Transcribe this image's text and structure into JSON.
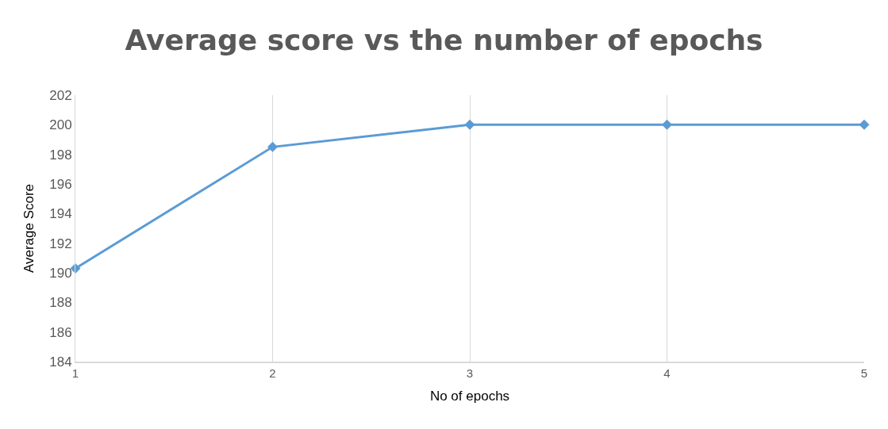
{
  "chart_data": {
    "type": "line",
    "title": "Average score vs the number of epochs",
    "xlabel": "No of epochs",
    "ylabel": "Average Score",
    "x": [
      1,
      2,
      3,
      4,
      5
    ],
    "series": [
      {
        "color": "#5b9bd5",
        "values": [
          190.3,
          198.5,
          200,
          200,
          200
        ]
      }
    ],
    "xlim": [
      1,
      5
    ],
    "xticks": [
      1,
      2,
      3,
      4,
      5
    ],
    "ylim": [
      184,
      202
    ],
    "yticks": [
      184,
      186,
      188,
      190,
      192,
      194,
      196,
      198,
      200,
      202
    ],
    "grid": "x",
    "marker": "diamond",
    "line_style": "solid"
  }
}
